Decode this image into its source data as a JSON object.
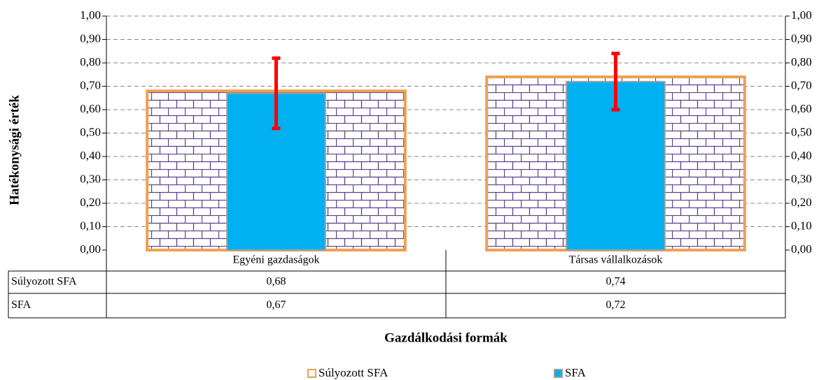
{
  "chart_data": {
    "type": "bar",
    "y_label": "Hatékonysági érték",
    "x_label": "Gazdálkodási formák",
    "categories": [
      "Egyéni gazdaságok",
      "Társas vállalkozások"
    ],
    "series": [
      {
        "name": "Súlyozott SFA",
        "color": "#ffffff",
        "edge_color": "#f0a050",
        "pattern": "brick",
        "pattern_color": "#5b3f8f",
        "values": [
          0.68,
          0.74
        ],
        "value_labels": [
          "0,68",
          "0,74"
        ]
      },
      {
        "name": "SFA",
        "color": "#00b0f0",
        "edge_color": "#a0a0a0",
        "values": [
          0.67,
          0.72
        ],
        "value_labels": [
          "0,67",
          "0,72"
        ],
        "error": [
          0.15,
          0.12
        ],
        "error_color": "#ff0000"
      }
    ],
    "ylim": [
      0,
      1
    ],
    "yticks": [
      {
        "value": 0,
        "label": "0,00"
      },
      {
        "value": 0.1,
        "label": "0,10"
      },
      {
        "value": 0.2,
        "label": "0,20"
      },
      {
        "value": 0.3,
        "label": "0,30"
      },
      {
        "value": 0.4,
        "label": "0,40"
      },
      {
        "value": 0.5,
        "label": "0,50"
      },
      {
        "value": 0.6,
        "label": "0,60"
      },
      {
        "value": 0.7,
        "label": "0,70"
      },
      {
        "value": 0.8,
        "label": "0,80"
      },
      {
        "value": 0.9,
        "label": "0,90"
      },
      {
        "value": 1,
        "label": "1,00"
      }
    ],
    "y2lim": [
      0,
      1
    ],
    "y2ticks": [
      {
        "value": 0,
        "label": "0,00"
      },
      {
        "value": 0.1,
        "label": "0,10"
      },
      {
        "value": 0.2,
        "label": "0,20"
      },
      {
        "value": 0.3,
        "label": "0,30"
      },
      {
        "value": 0.4,
        "label": "0,40"
      },
      {
        "value": 0.5,
        "label": "0,50"
      },
      {
        "value": 0.6,
        "label": "0,60"
      },
      {
        "value": 0.7,
        "label": "0,70"
      },
      {
        "value": 0.8,
        "label": "0,80"
      },
      {
        "value": 0.9,
        "label": "0,90"
      },
      {
        "value": 1,
        "label": "1,00"
      }
    ],
    "grid": true,
    "legend": "bottom"
  }
}
